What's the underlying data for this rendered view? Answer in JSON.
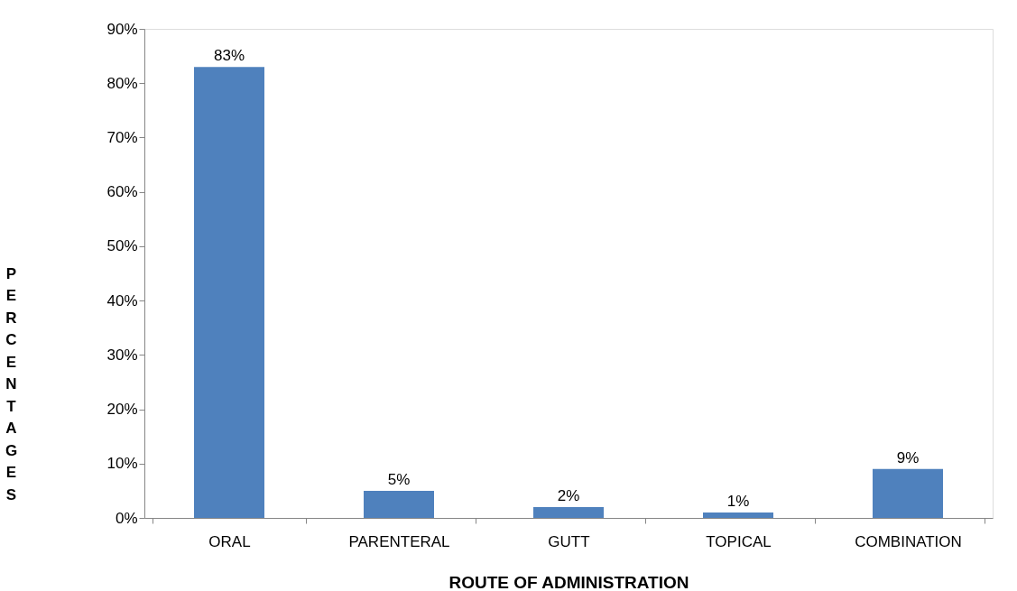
{
  "chart_data": {
    "type": "bar",
    "xlabel": "ROUTE OF ADMINISTRATION",
    "ylabel": "PERCENTAGES",
    "categories": [
      "ORAL",
      "PARENTERAL",
      "GUTT",
      "TOPICAL",
      "COMBINATION"
    ],
    "values": [
      83,
      5,
      2,
      1,
      9
    ],
    "color": "#4f81bd",
    "value_labels": [
      "83%",
      "5%",
      "2%",
      "1%",
      "9%"
    ],
    "ylim": [
      0,
      90
    ],
    "yticks": [
      {
        "value": 0,
        "label": "0%"
      },
      {
        "value": 10,
        "label": "10%"
      },
      {
        "value": 20,
        "label": "20%"
      },
      {
        "value": 30,
        "label": "30%"
      },
      {
        "value": 40,
        "label": "40%"
      },
      {
        "value": 50,
        "label": "50%"
      },
      {
        "value": 60,
        "label": "60%"
      },
      {
        "value": 70,
        "label": "70%"
      },
      {
        "value": 80,
        "label": "80%"
      },
      {
        "value": 90,
        "label": "90%"
      }
    ],
    "grid": false
  }
}
